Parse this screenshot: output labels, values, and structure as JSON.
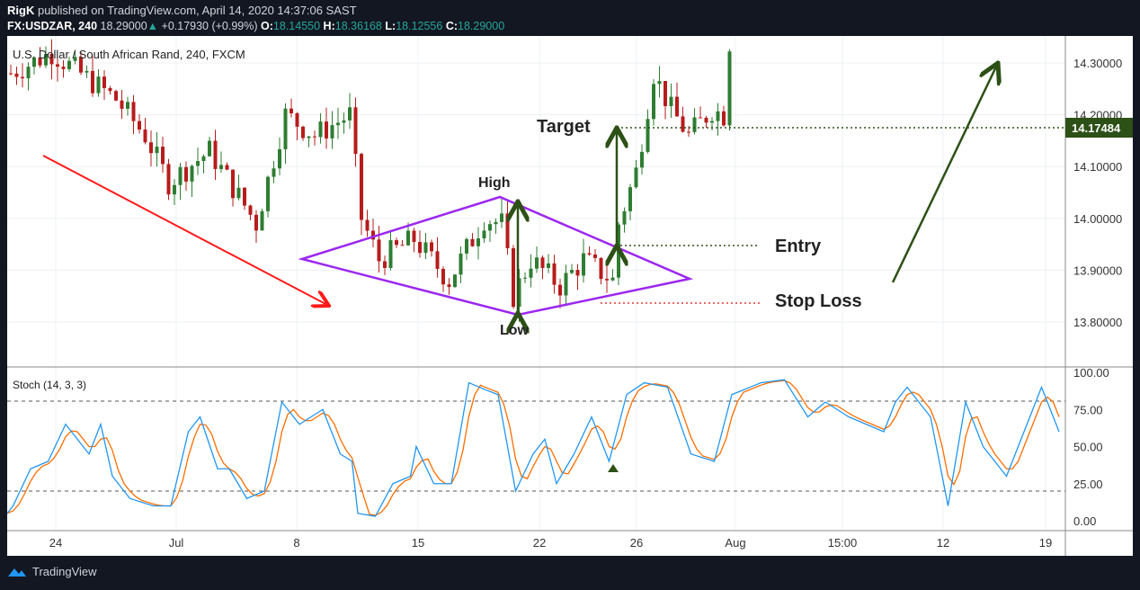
{
  "header": {
    "author": "RigK",
    "published_text": "published on TradingView.com, April 14, 2020 14:37:06 SAST",
    "symbol": "FX:USDZAR, 240",
    "last": "18.29000",
    "change": "+0.17930 (+0.99%)",
    "o_label": "O:",
    "o": "18.14550",
    "h_label": "H:",
    "h": "18.36168",
    "l_label": "L:",
    "l": "18.12556",
    "c_label": "C:",
    "c": "18.29000"
  },
  "chart": {
    "legend": "U.S. Dollar / South African Rand, 240, FXCM",
    "price_ticks": [
      "14.30000",
      "14.20000",
      "14.10000",
      "14.00000",
      "13.90000",
      "13.80000"
    ],
    "price_tick_values": [
      14.3,
      14.2,
      14.1,
      14.0,
      13.9,
      13.8
    ],
    "price_label": "14.17484",
    "price_label_value": 14.17484,
    "annotations": {
      "target": "Target",
      "high": "High",
      "low": "Low",
      "entry": "Entry",
      "stop_loss": "Stop Loss"
    },
    "price_path": [
      [
        0,
        14.28
      ],
      [
        7,
        14.32
      ],
      [
        18,
        14.23
      ],
      [
        23,
        14.16
      ],
      [
        27,
        14.07
      ],
      [
        34,
        14.13
      ],
      [
        42,
        13.99
      ],
      [
        47,
        14.2
      ],
      [
        52,
        14.16
      ],
      [
        58,
        14.2
      ],
      [
        60,
        14.0
      ],
      [
        63,
        13.92
      ],
      [
        69,
        13.96
      ],
      [
        75,
        13.88
      ],
      [
        81,
        14.0
      ],
      [
        84,
        13.99
      ],
      [
        86,
        13.85
      ],
      [
        89,
        13.92
      ],
      [
        94,
        13.87
      ],
      [
        98,
        13.92
      ],
      [
        103,
        13.88
      ],
      [
        104,
        13.99
      ],
      [
        107,
        14.09
      ],
      [
        110,
        14.28
      ],
      [
        113,
        14.21
      ],
      [
        116,
        14.16
      ],
      [
        120,
        14.21
      ],
      [
        122,
        14.2
      ],
      [
        123,
        14.34
      ]
    ],
    "colors": {
      "up": "#2e7d32",
      "down": "#b71c1c",
      "diamond": "#9c27f0",
      "trend": "#ff1a1a",
      "target": "#2d5016"
    }
  },
  "stoch": {
    "label": "Stoch (14, 3, 3)",
    "ticks": [
      "100.00",
      "75.00",
      "50.00",
      "25.00",
      "0.00"
    ],
    "tick_values": [
      100,
      75,
      50,
      25,
      0
    ],
    "path": [
      [
        0,
        5
      ],
      [
        1,
        10
      ],
      [
        4,
        35
      ],
      [
        7,
        40
      ],
      [
        10,
        65
      ],
      [
        14,
        45
      ],
      [
        16,
        65
      ],
      [
        18,
        30
      ],
      [
        21,
        15
      ],
      [
        25,
        10
      ],
      [
        28,
        10
      ],
      [
        31,
        60
      ],
      [
        33,
        70
      ],
      [
        36,
        35
      ],
      [
        38,
        35
      ],
      [
        41,
        15
      ],
      [
        44,
        20
      ],
      [
        47,
        80
      ],
      [
        50,
        65
      ],
      [
        54,
        75
      ],
      [
        57,
        45
      ],
      [
        59,
        40
      ],
      [
        60,
        5
      ],
      [
        63,
        3
      ],
      [
        66,
        25
      ],
      [
        69,
        30
      ],
      [
        70,
        50
      ],
      [
        73,
        25
      ],
      [
        76,
        25
      ],
      [
        79,
        93
      ],
      [
        82,
        88
      ],
      [
        84,
        85
      ],
      [
        87,
        20
      ],
      [
        90,
        45
      ],
      [
        92,
        55
      ],
      [
        94,
        25
      ],
      [
        97,
        45
      ],
      [
        100,
        70
      ],
      [
        103,
        40
      ],
      [
        106,
        85
      ],
      [
        109,
        93
      ],
      [
        113,
        90
      ],
      [
        117,
        45
      ],
      [
        121,
        40
      ],
      [
        124,
        85
      ],
      [
        129,
        93
      ],
      [
        133,
        95
      ],
      [
        137,
        70
      ],
      [
        140,
        80
      ],
      [
        144,
        70
      ],
      [
        147,
        65
      ],
      [
        150,
        60
      ],
      [
        152,
        80
      ],
      [
        154,
        90
      ],
      [
        158,
        70
      ],
      [
        161,
        10
      ],
      [
        164,
        80
      ],
      [
        167,
        50
      ],
      [
        171,
        30
      ],
      [
        174,
        60
      ],
      [
        177,
        90
      ],
      [
        180,
        60
      ]
    ],
    "colors": {
      "k": "#2196f3",
      "d": "#ff6d00"
    }
  },
  "time_axis": [
    "24",
    "Jul",
    "8",
    "15",
    "22",
    "26",
    "Aug",
    "15:00",
    "12",
    "19"
  ],
  "footer": {
    "brand": "TradingView"
  }
}
